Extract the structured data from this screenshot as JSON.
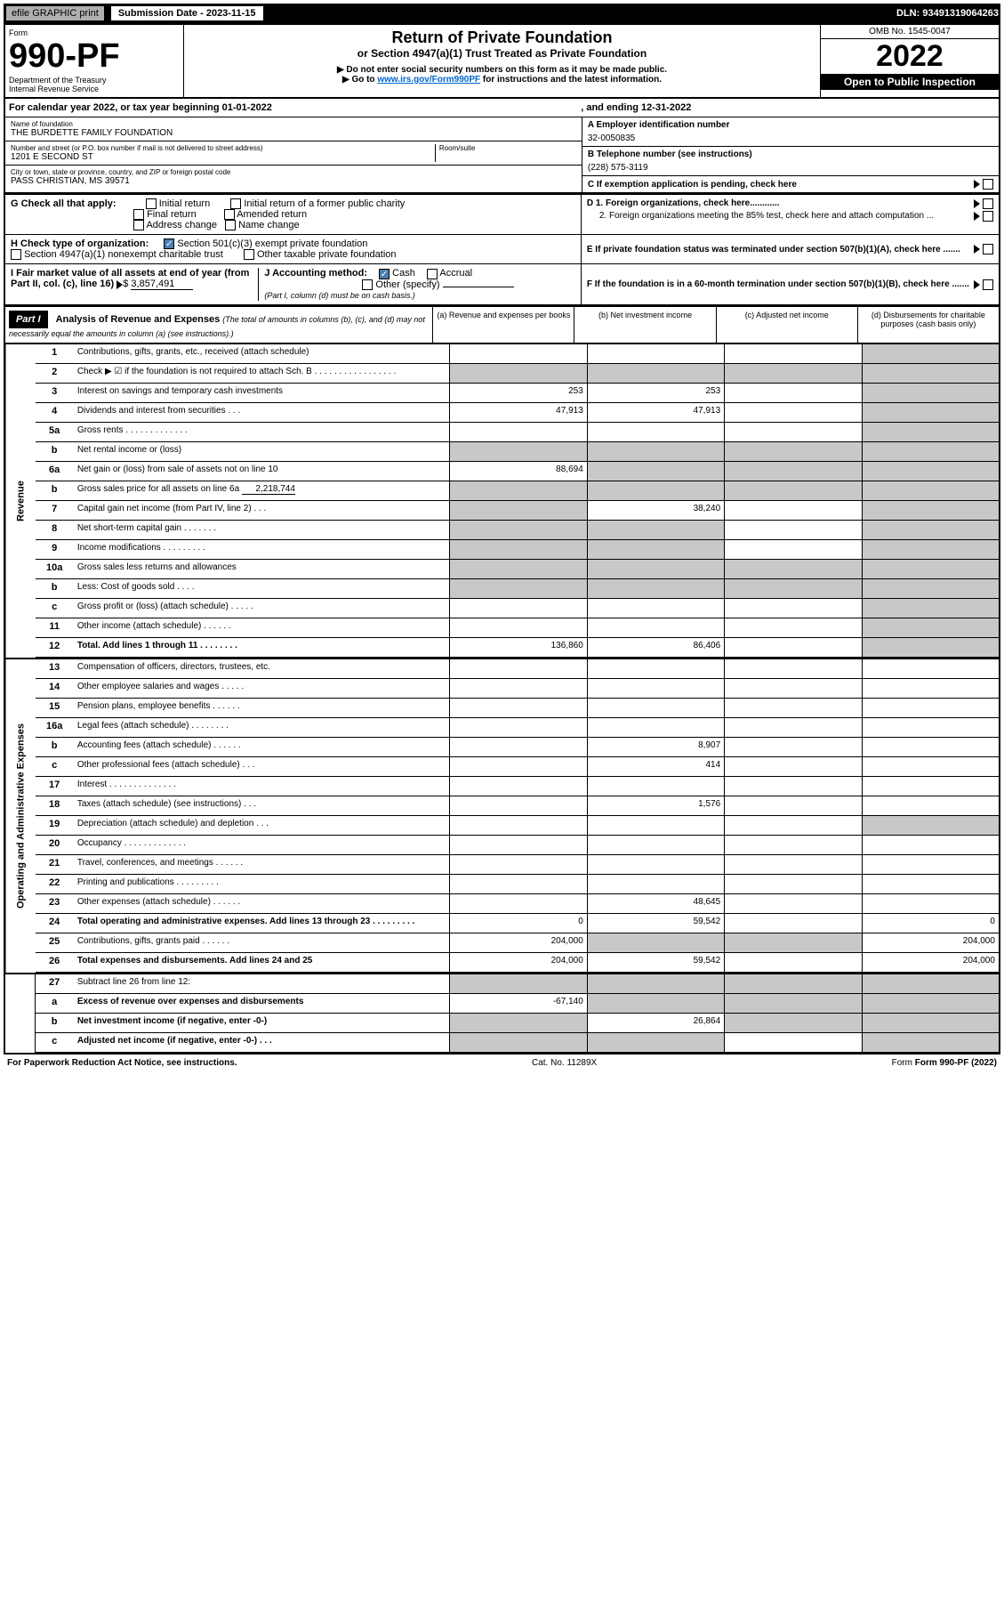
{
  "header": {
    "efile": "efile GRAPHIC print",
    "submission_label": "Submission Date - 2023-11-15",
    "dln": "DLN: 93491319064263"
  },
  "form": {
    "form_word": "Form",
    "number": "990-PF",
    "dept": "Department of the Treasury",
    "irs": "Internal Revenue Service",
    "title": "Return of Private Foundation",
    "subtitle": "or Section 4947(a)(1) Trust Treated as Private Foundation",
    "note1": "▶ Do not enter social security numbers on this form as it may be made public.",
    "note2_pre": "▶ Go to ",
    "note2_link": "www.irs.gov/Form990PF",
    "note2_post": " for instructions and the latest information.",
    "omb": "OMB No. 1545-0047",
    "year": "2022",
    "open": "Open to Public Inspection"
  },
  "calyear": {
    "text": "For calendar year 2022, or tax year beginning 01-01-2022",
    "ending": ", and ending 12-31-2022"
  },
  "org": {
    "name_label": "Name of foundation",
    "name": "THE BURDETTE FAMILY FOUNDATION",
    "addr_label": "Number and street (or P.O. box number if mail is not delivered to street address)",
    "addr": "1201 E SECOND ST",
    "room_label": "Room/suite",
    "city_label": "City or town, state or province, country, and ZIP or foreign postal code",
    "city": "PASS CHRISTIAN, MS  39571",
    "a_label": "A Employer identification number",
    "ein": "32-0050835",
    "b_label": "B Telephone number (see instructions)",
    "phone": "(228) 575-3119",
    "c_label": "C If exemption application is pending, check here"
  },
  "sectionG": {
    "label": "G Check all that apply:",
    "opts": [
      "Initial return",
      "Final return",
      "Address change",
      "Initial return of a former public charity",
      "Amended return",
      "Name change"
    ]
  },
  "sectionH": {
    "label": "H Check type of organization:",
    "opt1": "Section 501(c)(3) exempt private foundation",
    "opt2": "Section 4947(a)(1) nonexempt charitable trust",
    "opt3": "Other taxable private foundation"
  },
  "sectionI": {
    "label": "I Fair market value of all assets at end of year (from Part II, col. (c), line 16)",
    "value": "3,857,491"
  },
  "sectionJ": {
    "label": "J Accounting method:",
    "cash": "Cash",
    "accrual": "Accrual",
    "other": "Other (specify)",
    "note": "(Part I, column (d) must be on cash basis.)"
  },
  "sectionD": {
    "d1": "D 1. Foreign organizations, check here............",
    "d2": "2. Foreign organizations meeting the 85% test, check here and attach computation ..."
  },
  "sectionE": "E  If private foundation status was terminated under section 507(b)(1)(A), check here .......",
  "sectionF": "F  If the foundation is in a 60-month termination under section 507(b)(1)(B), check here .......",
  "part1": {
    "label": "Part I",
    "title": "Analysis of Revenue and Expenses",
    "sub": "(The total of amounts in columns (b), (c), and (d) may not necessarily equal the amounts in column (a) (see instructions).)",
    "cola": "(a)  Revenue and expenses per books",
    "colb": "(b)  Net investment income",
    "colc": "(c)  Adjusted net income",
    "cold": "(d)  Disbursements for charitable purposes (cash basis only)"
  },
  "side_labels": {
    "rev": "Revenue",
    "exp": "Operating and Administrative Expenses"
  },
  "rows": {
    "r1": {
      "n": "1",
      "l": "Contributions, gifts, grants, etc., received (attach schedule)",
      "a": "",
      "b": "",
      "c": "",
      "d": ""
    },
    "r2": {
      "n": "2",
      "l": "Check ▶ ☑ if the foundation is not required to attach Sch. B  . . . . . . . . . . . . . . . . .",
      "a": "",
      "b": "",
      "c": "",
      "d": ""
    },
    "r3": {
      "n": "3",
      "l": "Interest on savings and temporary cash investments",
      "a": "253",
      "b": "253",
      "c": "",
      "d": ""
    },
    "r4": {
      "n": "4",
      "l": "Dividends and interest from securities  .  .  .",
      "a": "47,913",
      "b": "47,913",
      "c": "",
      "d": ""
    },
    "r5a": {
      "n": "5a",
      "l": "Gross rents  . . . . . . . . . . . . .",
      "a": "",
      "b": "",
      "c": "",
      "d": ""
    },
    "r5b": {
      "n": "b",
      "l": "Net rental income or (loss)  ",
      "a": "",
      "b": "",
      "c": "",
      "d": ""
    },
    "r6a": {
      "n": "6a",
      "l": "Net gain or (loss) from sale of assets not on line 10",
      "a": "88,694",
      "b": "",
      "c": "",
      "d": ""
    },
    "r6b": {
      "n": "b",
      "l": "Gross sales price for all assets on line 6a",
      "val": "2,218,744",
      "a": "",
      "b": "",
      "c": "",
      "d": ""
    },
    "r7": {
      "n": "7",
      "l": "Capital gain net income (from Part IV, line 2)  .  .  .",
      "a": "",
      "b": "38,240",
      "c": "",
      "d": ""
    },
    "r8": {
      "n": "8",
      "l": "Net short-term capital gain  .  .  .  .  .  .  .",
      "a": "",
      "b": "",
      "c": "",
      "d": ""
    },
    "r9": {
      "n": "9",
      "l": "Income modifications  .  .  .  .  .  .  .  .  .",
      "a": "",
      "b": "",
      "c": "",
      "d": ""
    },
    "r10a": {
      "n": "10a",
      "l": "Gross sales less returns and allowances",
      "a": "",
      "b": "",
      "c": "",
      "d": ""
    },
    "r10b": {
      "n": "b",
      "l": "Less: Cost of goods sold  .  .  .  .",
      "a": "",
      "b": "",
      "c": "",
      "d": ""
    },
    "r10c": {
      "n": "c",
      "l": "Gross profit or (loss) (attach schedule)  .  .  .  .  .",
      "a": "",
      "b": "",
      "c": "",
      "d": ""
    },
    "r11": {
      "n": "11",
      "l": "Other income (attach schedule)  .  .  .  .  .  .",
      "a": "",
      "b": "",
      "c": "",
      "d": ""
    },
    "r12": {
      "n": "12",
      "l": "Total. Add lines 1 through 11  .  .  .  .  .  .  .  .",
      "a": "136,860",
      "b": "86,406",
      "c": "",
      "d": ""
    },
    "r13": {
      "n": "13",
      "l": "Compensation of officers, directors, trustees, etc.",
      "a": "",
      "b": "",
      "c": "",
      "d": ""
    },
    "r14": {
      "n": "14",
      "l": "Other employee salaries and wages  .  .  .  .  .",
      "a": "",
      "b": "",
      "c": "",
      "d": ""
    },
    "r15": {
      "n": "15",
      "l": "Pension plans, employee benefits  .  .  .  .  .  .",
      "a": "",
      "b": "",
      "c": "",
      "d": ""
    },
    "r16a": {
      "n": "16a",
      "l": "Legal fees (attach schedule)  .  .  .  .  .  .  .  .",
      "a": "",
      "b": "",
      "c": "",
      "d": ""
    },
    "r16b": {
      "n": "b",
      "l": "Accounting fees (attach schedule)  .  .  .  .  .  .",
      "a": "",
      "b": "8,907",
      "c": "",
      "d": ""
    },
    "r16c": {
      "n": "c",
      "l": "Other professional fees (attach schedule)  .  .  .",
      "a": "",
      "b": "414",
      "c": "",
      "d": ""
    },
    "r17": {
      "n": "17",
      "l": "Interest  .  .  .  .  .  .  .  .  .  .  .  .  .  .",
      "a": "",
      "b": "",
      "c": "",
      "d": ""
    },
    "r18": {
      "n": "18",
      "l": "Taxes (attach schedule) (see instructions)  .  .  .",
      "a": "",
      "b": "1,576",
      "c": "",
      "d": ""
    },
    "r19": {
      "n": "19",
      "l": "Depreciation (attach schedule) and depletion  .  .  .",
      "a": "",
      "b": "",
      "c": "",
      "d": ""
    },
    "r20": {
      "n": "20",
      "l": "Occupancy  .  .  .  .  .  .  .  .  .  .  .  .  .",
      "a": "",
      "b": "",
      "c": "",
      "d": ""
    },
    "r21": {
      "n": "21",
      "l": "Travel, conferences, and meetings  .  .  .  .  .  .",
      "a": "",
      "b": "",
      "c": "",
      "d": ""
    },
    "r22": {
      "n": "22",
      "l": "Printing and publications  .  .  .  .  .  .  .  .  .",
      "a": "",
      "b": "",
      "c": "",
      "d": ""
    },
    "r23": {
      "n": "23",
      "l": "Other expenses (attach schedule)  .  .  .  .  .  .",
      "a": "",
      "b": "48,645",
      "c": "",
      "d": ""
    },
    "r24": {
      "n": "24",
      "l": "Total operating and administrative expenses. Add lines 13 through 23  .  .  .  .  .  .  .  .  .",
      "a": "0",
      "b": "59,542",
      "c": "",
      "d": "0"
    },
    "r25": {
      "n": "25",
      "l": "Contributions, gifts, grants paid  .  .  .  .  .  .",
      "a": "204,000",
      "b": "",
      "c": "",
      "d": "204,000"
    },
    "r26": {
      "n": "26",
      "l": "Total expenses and disbursements. Add lines 24 and 25",
      "a": "204,000",
      "b": "59,542",
      "c": "",
      "d": "204,000"
    },
    "r27": {
      "n": "27",
      "l": "Subtract line 26 from line 12:",
      "a": "",
      "b": "",
      "c": "",
      "d": ""
    },
    "r27a": {
      "n": "a",
      "l": "Excess of revenue over expenses and disbursements",
      "a": "-67,140",
      "b": "",
      "c": "",
      "d": ""
    },
    "r27b": {
      "n": "b",
      "l": "Net investment income (if negative, enter -0-)",
      "a": "",
      "b": "26,864",
      "c": "",
      "d": ""
    },
    "r27c": {
      "n": "c",
      "l": "Adjusted net income (if negative, enter -0-)  .  .  .",
      "a": "",
      "b": "",
      "c": "",
      "d": ""
    }
  },
  "footer": {
    "left": "For Paperwork Reduction Act Notice, see instructions.",
    "mid": "Cat. No. 11289X",
    "right": "Form 990-PF (2022)"
  }
}
